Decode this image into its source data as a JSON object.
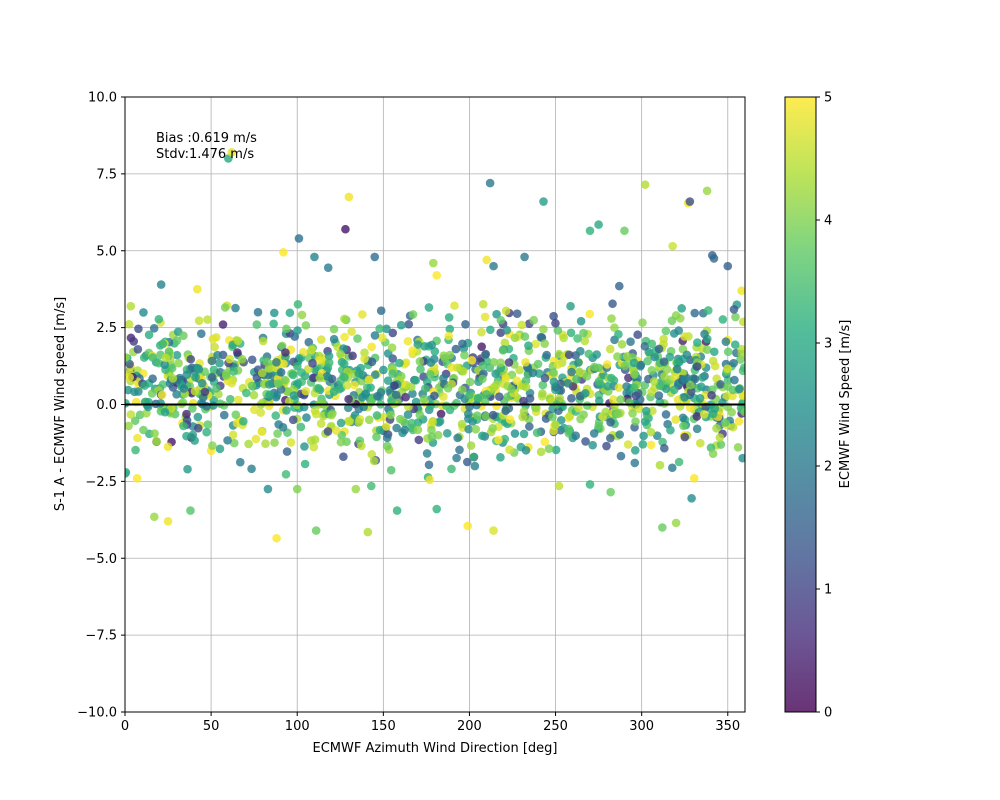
{
  "chart_data": {
    "type": "scatter",
    "title": "",
    "xlabel": "ECMWF Azimuth Wind Direction [deg]",
    "ylabel": "S-1 A - ECMWF Wind speed [m/s]",
    "xlim": [
      0,
      360
    ],
    "ylim": [
      -10,
      10
    ],
    "xticks": [
      0,
      50,
      100,
      150,
      200,
      250,
      300,
      350
    ],
    "xtick_labels": [
      "0",
      "50",
      "100",
      "150",
      "200",
      "250",
      "300",
      "350"
    ],
    "yticks": [
      -10,
      -7.5,
      -5,
      -2.5,
      0,
      2.5,
      5,
      7.5,
      10
    ],
    "ytick_labels": [
      "−10.0",
      "−7.5",
      "−5.0",
      "−2.5",
      "0.0",
      "2.5",
      "5.0",
      "7.5",
      "10.0"
    ],
    "grid": true,
    "zero_line": 0,
    "colormap": "viridis",
    "colorbar": {
      "label": "ECMWF Wind Speed [m/s]",
      "range": [
        0,
        5
      ],
      "ticks": [
        0,
        1,
        2,
        3,
        4,
        5
      ],
      "tick_labels": [
        "0",
        "1",
        "2",
        "3",
        "4",
        "5"
      ]
    },
    "annotations": [
      "Bias :0.619 m/s",
      "Stdv:1.476 m/s"
    ],
    "outliers": [
      {
        "x": 60,
        "y": 8.0,
        "c": 3.0
      },
      {
        "x": 62,
        "y": 8.2,
        "c": 4.8
      },
      {
        "x": 212,
        "y": 7.2,
        "c": 2.0
      },
      {
        "x": 302,
        "y": 7.15,
        "c": 4.4
      },
      {
        "x": 338,
        "y": 6.95,
        "c": 4.2
      },
      {
        "x": 130,
        "y": 6.75,
        "c": 4.9
      },
      {
        "x": 243,
        "y": 6.6,
        "c": 2.8
      },
      {
        "x": 327,
        "y": 6.55,
        "c": 4.9
      },
      {
        "x": 328,
        "y": 6.6,
        "c": 1.2
      },
      {
        "x": 275,
        "y": 5.85,
        "c": 3.0
      },
      {
        "x": 128,
        "y": 5.7,
        "c": 0.3
      },
      {
        "x": 270,
        "y": 5.65,
        "c": 3.2
      },
      {
        "x": 290,
        "y": 5.65,
        "c": 3.8
      },
      {
        "x": 101,
        "y": 5.4,
        "c": 1.8
      },
      {
        "x": 318,
        "y": 5.15,
        "c": 4.6
      },
      {
        "x": 92,
        "y": 4.95,
        "c": 5.0
      },
      {
        "x": 341,
        "y": 4.85,
        "c": 1.5
      },
      {
        "x": 110,
        "y": 4.8,
        "c": 2.2
      },
      {
        "x": 145,
        "y": 4.8,
        "c": 1.8
      },
      {
        "x": 232,
        "y": 4.8,
        "c": 2.0
      },
      {
        "x": 210,
        "y": 4.7,
        "c": 4.9
      },
      {
        "x": 179,
        "y": 4.6,
        "c": 4.2
      },
      {
        "x": 350,
        "y": 4.5,
        "c": 1.5
      },
      {
        "x": 118,
        "y": 4.45,
        "c": 2.0
      },
      {
        "x": 214,
        "y": 4.5,
        "c": 2.0
      },
      {
        "x": 181,
        "y": 4.2,
        "c": 5.0
      },
      {
        "x": 21,
        "y": 3.9,
        "c": 2.2
      },
      {
        "x": 287,
        "y": 3.85,
        "c": 1.6
      },
      {
        "x": 42,
        "y": 3.75,
        "c": 4.9
      },
      {
        "x": 342,
        "y": 4.75,
        "c": 1.7
      },
      {
        "x": 358,
        "y": 3.7,
        "c": 4.9
      },
      {
        "x": 88,
        "y": -4.35,
        "c": 5.0
      },
      {
        "x": 141,
        "y": -4.15,
        "c": 4.4
      },
      {
        "x": 111,
        "y": -4.1,
        "c": 3.8
      },
      {
        "x": 214,
        "y": -4.1,
        "c": 4.7
      },
      {
        "x": 312,
        "y": -4.0,
        "c": 3.8
      },
      {
        "x": 199,
        "y": -3.95,
        "c": 5.0
      },
      {
        "x": 320,
        "y": -3.85,
        "c": 4.2
      },
      {
        "x": 25,
        "y": -3.8,
        "c": 4.9
      },
      {
        "x": 17,
        "y": -3.65,
        "c": 4.2
      },
      {
        "x": 38,
        "y": -3.45,
        "c": 3.6
      },
      {
        "x": 158,
        "y": -3.45,
        "c": 3.2
      },
      {
        "x": 181,
        "y": -3.4,
        "c": 3.2
      },
      {
        "x": 329,
        "y": -3.05,
        "c": 2.4
      },
      {
        "x": 83,
        "y": -2.75,
        "c": 2.4
      },
      {
        "x": 100,
        "y": -2.75,
        "c": 4.0
      },
      {
        "x": 134,
        "y": -2.75,
        "c": 4.2
      },
      {
        "x": 143,
        "y": -2.65,
        "c": 3.4
      },
      {
        "x": 177,
        "y": -2.45,
        "c": 4.9
      },
      {
        "x": 252,
        "y": -2.65,
        "c": 4.5
      },
      {
        "x": 282,
        "y": -2.85,
        "c": 3.8
      },
      {
        "x": 270,
        "y": -2.6,
        "c": 3.2
      },
      {
        "x": 296,
        "y": -1.9,
        "c": 2.0
      },
      {
        "x": 0,
        "y": -2.25,
        "c": 3.2
      },
      {
        "x": 7,
        "y": -2.4,
        "c": 5.0
      }
    ],
    "cluster": {
      "seed": 24681,
      "count": 1400,
      "x_range": [
        0,
        360
      ],
      "y_mean": 0.62,
      "y_std": 1.1,
      "y_clip": [
        -2.4,
        3.3
      ],
      "c_range": [
        0.2,
        5
      ]
    }
  }
}
